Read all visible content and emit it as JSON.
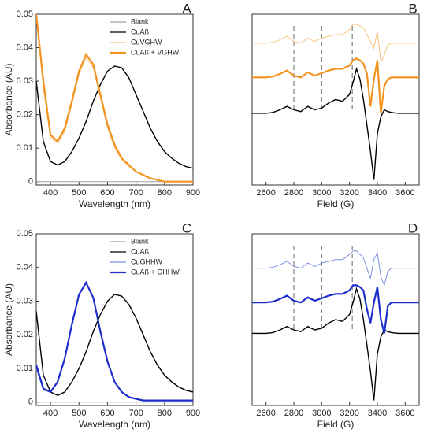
{
  "chart_data": [
    {
      "type": "line",
      "panel_label": "A",
      "x_label": "Wavelength (nm)",
      "y_label": "Absorbance (AU)",
      "xlim": [
        350,
        900
      ],
      "xticks": [
        400,
        500,
        600,
        700,
        800,
        900
      ],
      "ylim": [
        -0.001,
        0.05
      ],
      "yticks": [
        0,
        0.01,
        0.02,
        0.03,
        0.04,
        0.05
      ],
      "legend": "upper right",
      "x": [
        350,
        375,
        400,
        425,
        450,
        475,
        500,
        525,
        550,
        575,
        600,
        625,
        650,
        675,
        700,
        725,
        750,
        775,
        800,
        825,
        850,
        875,
        900
      ],
      "series": [
        {
          "name": "Blank",
          "color": "#a0a0a0",
          "values": [
            0,
            0,
            0,
            0,
            0,
            0,
            0,
            0,
            0,
            0,
            0,
            0,
            0,
            0,
            0,
            0,
            0,
            0,
            0,
            0,
            0,
            0,
            0
          ]
        },
        {
          "name": "CuAß",
          "color": "#000000",
          "values": [
            0.03,
            0.012,
            0.006,
            0.005,
            0.006,
            0.009,
            0.013,
            0.018,
            0.024,
            0.029,
            0.033,
            0.0345,
            0.034,
            0.031,
            0.026,
            0.021,
            0.016,
            0.012,
            0.009,
            0.007,
            0.0055,
            0.0045,
            0.004
          ]
        },
        {
          "name": "CuVGHW",
          "color": "#f7c27e",
          "values": [
            0.049,
            0.028,
            0.013,
            0.0115,
            0.015,
            0.023,
            0.032,
            0.037,
            0.034,
            0.025,
            0.016,
            0.01,
            0.0065,
            0.0045,
            0.003,
            0.002,
            0.001,
            0.0005,
            0,
            0,
            0,
            0,
            0
          ]
        },
        {
          "name": "CuAß + VGHW",
          "color": "#f39422",
          "values": [
            0.05,
            0.03,
            0.014,
            0.012,
            0.016,
            0.024,
            0.033,
            0.038,
            0.035,
            0.026,
            0.017,
            0.011,
            0.007,
            0.005,
            0.003,
            0.002,
            0.001,
            0.0005,
            0,
            0,
            0,
            0,
            0
          ]
        }
      ]
    },
    {
      "type": "line",
      "panel_label": "B",
      "x_label": "Field (G)",
      "xlim": [
        2500,
        3700
      ],
      "xticks": [
        2600,
        2800,
        3000,
        3200,
        3400,
        3600
      ],
      "ylim": [
        0,
        100
      ],
      "vlines": [
        2800,
        3000,
        3220
      ],
      "x": [
        2500,
        2550,
        2600,
        2650,
        2700,
        2750,
        2800,
        2850,
        2900,
        2950,
        3000,
        3050,
        3100,
        3150,
        3200,
        3225,
        3250,
        3275,
        3300,
        3325,
        3350,
        3375,
        3400,
        3425,
        3450,
        3475,
        3500,
        3550,
        3600,
        3650,
        3700
      ],
      "series": [
        {
          "color": "#000000",
          "values": [
            42,
            42,
            42,
            42.5,
            44,
            46,
            44,
            43,
            46,
            44,
            45,
            48,
            50,
            49,
            53,
            60,
            68,
            62,
            50,
            35,
            20,
            3,
            30,
            40,
            44,
            43,
            42.5,
            42,
            42,
            42,
            42
          ]
        },
        {
          "color": "#f7c27e",
          "values": [
            83,
            83,
            83,
            83.5,
            85,
            87,
            84,
            83,
            86,
            84,
            86,
            87,
            88,
            88,
            91,
            94,
            94,
            93,
            92,
            88,
            84,
            80,
            90,
            72,
            76,
            82,
            83,
            83,
            83,
            83,
            83
          ]
        },
        {
          "color": "#f39422",
          "values": [
            63,
            63,
            63,
            63.5,
            65,
            67,
            64,
            63,
            66,
            64,
            65.5,
            67,
            68,
            68,
            70,
            73,
            74,
            73,
            71,
            65,
            46,
            62,
            73,
            42,
            58,
            62,
            63,
            63,
            63,
            63,
            63
          ]
        }
      ]
    },
    {
      "type": "line",
      "panel_label": "C",
      "x_label": "Wavelength (nm)",
      "y_label": "Absorbance (AU)",
      "xlim": [
        350,
        900
      ],
      "xticks": [
        400,
        500,
        600,
        700,
        800,
        900
      ],
      "ylim": [
        -0.001,
        0.05
      ],
      "yticks": [
        0,
        0.01,
        0.02,
        0.03,
        0.04,
        0.05
      ],
      "legend": "upper right",
      "x": [
        350,
        375,
        400,
        425,
        450,
        475,
        500,
        525,
        550,
        575,
        600,
        625,
        650,
        675,
        700,
        725,
        750,
        775,
        800,
        825,
        850,
        875,
        900
      ],
      "series": [
        {
          "name": "Blank",
          "color": "#a0a0a0",
          "values": [
            0,
            0,
            0,
            0,
            0,
            0,
            0,
            0,
            0,
            0,
            0,
            0,
            0,
            0,
            0,
            0,
            0,
            0,
            0,
            0,
            0,
            0,
            0
          ]
        },
        {
          "name": "CuAß",
          "color": "#000000",
          "values": [
            0.027,
            0.008,
            0.003,
            0.002,
            0.003,
            0.006,
            0.01,
            0.015,
            0.021,
            0.026,
            0.03,
            0.032,
            0.0315,
            0.029,
            0.025,
            0.02,
            0.015,
            0.011,
            0.008,
            0.006,
            0.0045,
            0.0035,
            0.003
          ]
        },
        {
          "name": "CuGHHW",
          "color": "#8090e0",
          "values": [
            0.01,
            0.0035,
            0.003,
            0.006,
            0.013,
            0.023,
            0.032,
            0.0355,
            0.031,
            0.021,
            0.012,
            0.006,
            0.003,
            0.0015,
            0.001,
            0.0005,
            0.0005,
            0.0005,
            0.0005,
            0.0005,
            0.0005,
            0.0005,
            0.0005
          ]
        },
        {
          "name": "CuAß + GHHW",
          "color": "#1f2fcc",
          "values": [
            0.011,
            0.004,
            0.003,
            0.006,
            0.013,
            0.023,
            0.032,
            0.0355,
            0.031,
            0.021,
            0.012,
            0.006,
            0.003,
            0.0015,
            0.001,
            0.0005,
            0.0005,
            0.0005,
            0.0005,
            0.0005,
            0.0005,
            0.0005,
            0.0005
          ]
        }
      ]
    },
    {
      "type": "line",
      "panel_label": "D",
      "x_label": "Field (G)",
      "xlim": [
        2500,
        3700
      ],
      "xticks": [
        2600,
        2800,
        3000,
        3200,
        3400,
        3600
      ],
      "ylim": [
        0,
        100
      ],
      "vlines": [
        2800,
        3000,
        3220
      ],
      "x": [
        2500,
        2550,
        2600,
        2650,
        2700,
        2750,
        2800,
        2850,
        2900,
        2950,
        3000,
        3050,
        3100,
        3150,
        3200,
        3225,
        3250,
        3275,
        3300,
        3325,
        3350,
        3375,
        3400,
        3425,
        3450,
        3475,
        3500,
        3550,
        3600,
        3650,
        3700
      ],
      "series": [
        {
          "color": "#000000",
          "values": [
            42,
            42,
            42,
            42.5,
            44,
            46,
            44,
            43,
            46,
            44,
            45,
            48,
            50,
            49,
            53,
            60,
            68,
            62,
            50,
            35,
            20,
            3,
            30,
            40,
            44,
            43,
            42.5,
            42,
            42,
            42,
            42
          ]
        },
        {
          "color": "#8090e0",
          "values": [
            80,
            80,
            80,
            80.5,
            82,
            84,
            81,
            80,
            83,
            81,
            83,
            84,
            85,
            85,
            88,
            90,
            90,
            88,
            86,
            80,
            74,
            85,
            89,
            75,
            70,
            78,
            80,
            80,
            80,
            80,
            80
          ]
        },
        {
          "color": "#1f2fcc",
          "values": [
            60,
            60,
            60,
            60.5,
            62,
            64,
            61,
            60,
            63,
            61,
            62.5,
            64,
            65,
            65,
            67,
            70,
            70,
            69,
            67,
            56,
            48,
            60,
            69,
            50,
            42,
            58,
            60,
            60,
            60,
            60,
            60
          ]
        }
      ]
    }
  ]
}
